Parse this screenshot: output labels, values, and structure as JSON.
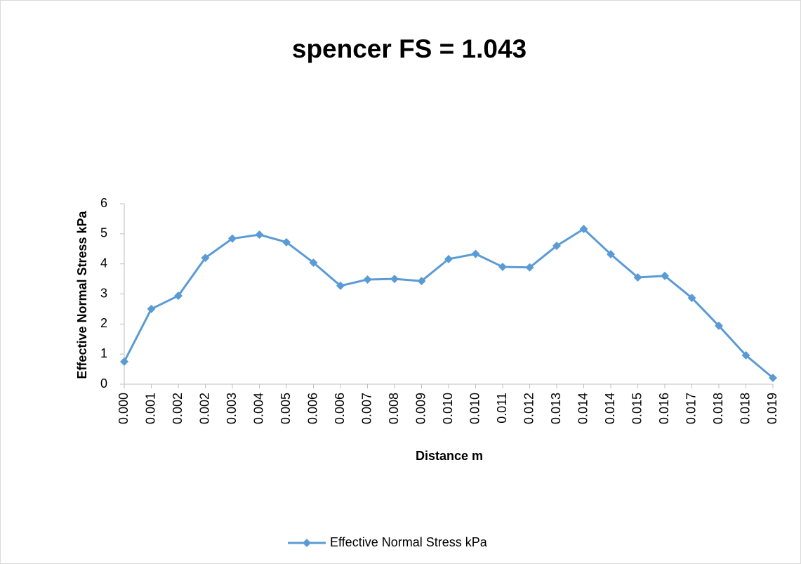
{
  "chart_data": {
    "type": "line",
    "title": "spencer FS = 1.043",
    "x_label": "Distance m",
    "y_label": "Effective Normal Stress kPa",
    "categories": [
      "0.000",
      "0.001",
      "0.002",
      "0.002",
      "0.003",
      "0.004",
      "0.005",
      "0.006",
      "0.006",
      "0.007",
      "0.008",
      "0.009",
      "0.010",
      "0.010",
      "0.011",
      "0.012",
      "0.013",
      "0.014",
      "0.014",
      "0.015",
      "0.016",
      "0.017",
      "0.018",
      "0.018",
      "0.019"
    ],
    "series": [
      {
        "name": "Effective Normal Stress kPa",
        "color": "#5b9bd5",
        "values": [
          0.75,
          2.5,
          2.94,
          4.2,
          4.84,
          4.97,
          4.72,
          4.04,
          3.27,
          3.48,
          3.5,
          3.43,
          4.16,
          4.33,
          3.9,
          3.88,
          4.6,
          5.16,
          4.32,
          3.55,
          3.6,
          2.87,
          1.94,
          0.96,
          0.21
        ]
      }
    ],
    "ylim": [
      0,
      6
    ],
    "yticks": [
      0,
      1,
      2,
      3,
      4,
      5,
      6
    ],
    "legend": "bottom",
    "grid": false
  }
}
